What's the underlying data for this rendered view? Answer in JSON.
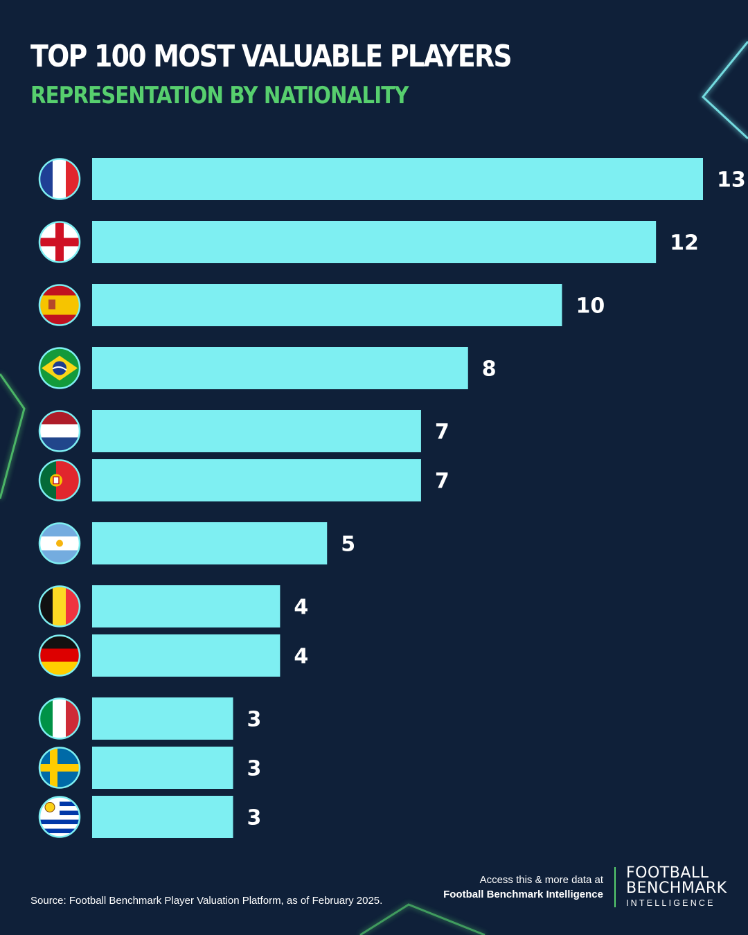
{
  "header": {
    "title": "TOP 100 MOST VALUABLE PLAYERS",
    "subtitle": "REPRESENTATION BY NATIONALITY"
  },
  "chart_data": {
    "type": "bar",
    "orientation": "horizontal",
    "title": "TOP 100 MOST VALUABLE PLAYERS",
    "subtitle": "REPRESENTATION BY NATIONALITY",
    "categories": [
      "France",
      "England",
      "Spain",
      "Brazil",
      "Netherlands",
      "Portugal",
      "Argentina",
      "Belgium",
      "Germany",
      "Italy",
      "Sweden",
      "Uruguay"
    ],
    "flag_icons": [
      "france-flag-icon",
      "england-flag-icon",
      "spain-flag-icon",
      "brazil-flag-icon",
      "netherlands-flag-icon",
      "portugal-flag-icon",
      "argentina-flag-icon",
      "belgium-flag-icon",
      "germany-flag-icon",
      "italy-flag-icon",
      "sweden-flag-icon",
      "uruguay-flag-icon"
    ],
    "values": [
      13,
      12,
      10,
      8,
      7,
      7,
      5,
      4,
      4,
      3,
      3,
      3
    ],
    "xlim": [
      0,
      13
    ],
    "grid": false,
    "legend": "none",
    "bar_color": "#7eeff2"
  },
  "colors": {
    "background": "#0f2039",
    "accent_green": "#57cf6e",
    "bar": "#7eeff2"
  },
  "footer": {
    "source": "Source: Football Benchmark Player Valuation Platform, as of February 2025.",
    "access_line1": "Access this & more data at",
    "access_line2": "Football Benchmark Intelligence",
    "logo_line1": "FOOTBALL",
    "logo_line2": "BENCHMARK",
    "logo_line3": "INTELLIGENCE"
  }
}
